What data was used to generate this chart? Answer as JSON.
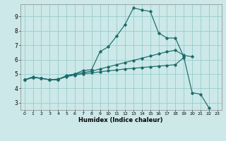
{
  "xlabel": "Humidex (Indice chaleur)",
  "background_color": "#cce8e8",
  "grid_color": "#99cccc",
  "line_color": "#1a6b6b",
  "xlim": [
    -0.5,
    23.5
  ],
  "ylim": [
    2.5,
    9.85
  ],
  "xticks": [
    0,
    1,
    2,
    3,
    4,
    5,
    6,
    7,
    8,
    9,
    10,
    11,
    12,
    13,
    14,
    15,
    16,
    17,
    18,
    19,
    20,
    21,
    22,
    23
  ],
  "yticks": [
    3,
    4,
    5,
    6,
    7,
    8,
    9
  ],
  "curve1_x": [
    0,
    1,
    2,
    3,
    4,
    5,
    6,
    7,
    8,
    9,
    10,
    11,
    12,
    13,
    14,
    15,
    16,
    17,
    18,
    19,
    20,
    21,
    22
  ],
  "curve1_y": [
    4.6,
    4.8,
    4.7,
    4.6,
    4.6,
    4.9,
    5.0,
    5.25,
    5.3,
    6.55,
    6.9,
    7.65,
    8.45,
    9.6,
    9.45,
    9.35,
    7.85,
    7.5,
    7.5,
    6.2,
    3.7,
    3.6,
    2.65
  ],
  "curve2_x": [
    0,
    1,
    2,
    3,
    4,
    5,
    6,
    7,
    8,
    9,
    10,
    11,
    12,
    13,
    14,
    15,
    16,
    17,
    18,
    19,
    20
  ],
  "curve2_y": [
    4.6,
    4.75,
    4.72,
    4.6,
    4.65,
    4.85,
    5.0,
    5.1,
    5.2,
    5.35,
    5.5,
    5.65,
    5.8,
    5.95,
    6.1,
    6.25,
    6.4,
    6.55,
    6.65,
    6.3,
    6.2
  ],
  "curve3_x": [
    0,
    1,
    2,
    3,
    4,
    5,
    6,
    7,
    8,
    9,
    10,
    11,
    12,
    13,
    14,
    15,
    16,
    17,
    18,
    19,
    20,
    21,
    22
  ],
  "curve3_y": [
    4.6,
    4.75,
    4.7,
    4.6,
    4.62,
    4.82,
    4.92,
    5.02,
    5.08,
    5.15,
    5.22,
    5.28,
    5.35,
    5.4,
    5.45,
    5.5,
    5.55,
    5.6,
    5.65,
    6.15,
    null,
    null,
    null
  ]
}
